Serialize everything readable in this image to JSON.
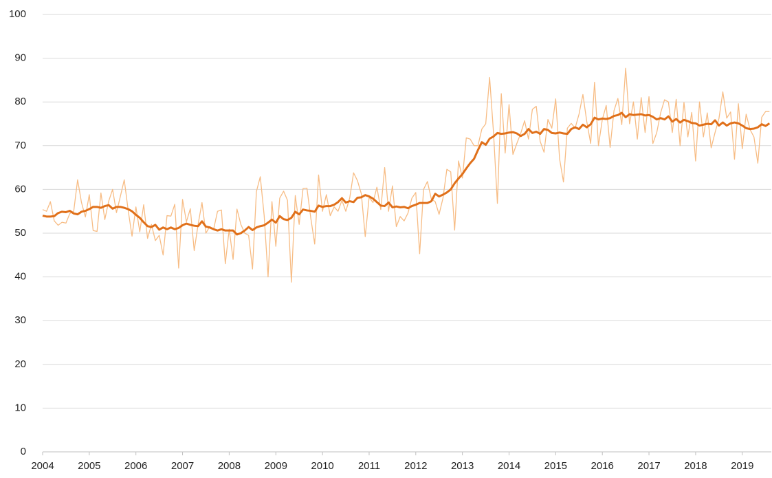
{
  "chart_data": {
    "type": "line",
    "categories": [
      "2004",
      null,
      null,
      null,
      null,
      null,
      null,
      null,
      null,
      null,
      null,
      null,
      "2005",
      null,
      null,
      null,
      null,
      null,
      null,
      null,
      null,
      null,
      null,
      null,
      "2006",
      null,
      null,
      null,
      null,
      null,
      null,
      null,
      null,
      null,
      null,
      null,
      "2007",
      null,
      null,
      null,
      null,
      null,
      null,
      null,
      null,
      null,
      null,
      null,
      "2008",
      null,
      null,
      null,
      null,
      null,
      null,
      null,
      null,
      null,
      null,
      null,
      "2009",
      null,
      null,
      null,
      null,
      null,
      null,
      null,
      null,
      null,
      null,
      null,
      "2010",
      null,
      null,
      null,
      null,
      null,
      null,
      null,
      null,
      null,
      null,
      null,
      "2011",
      null,
      null,
      null,
      null,
      null,
      null,
      null,
      null,
      null,
      null,
      null,
      "2012",
      null,
      null,
      null,
      null,
      null,
      null,
      null,
      null,
      null,
      null,
      null,
      "2013",
      null,
      null,
      null,
      null,
      null,
      null,
      null,
      null,
      null,
      null,
      null,
      "2014",
      null,
      null,
      null,
      null,
      null,
      null,
      null,
      null,
      null,
      null,
      null,
      "2015",
      null,
      null,
      null,
      null,
      null,
      null,
      null,
      null,
      null,
      null,
      null,
      "2016",
      null,
      null,
      null,
      null,
      null,
      null,
      null,
      null,
      null,
      null,
      null,
      "2017",
      null,
      null,
      null,
      null,
      null,
      null,
      null,
      null,
      null,
      null,
      null,
      "2018",
      null,
      null,
      null,
      null,
      null,
      null,
      null,
      null,
      null,
      null,
      null,
      "2019",
      null,
      null,
      null,
      null,
      null,
      null,
      null
    ],
    "series": [
      {
        "color": "#f7bc84",
        "values": [
          55.4,
          55,
          57.2,
          52.8,
          51.8,
          52.5,
          52.3,
          54.5,
          55,
          62.2,
          57,
          53.7,
          58.8,
          50.6,
          50.4,
          59.2,
          53.1,
          57.3,
          60,
          54.7,
          58.4,
          62.2,
          55.3,
          49.3,
          56,
          50.3,
          56.5,
          48.8,
          52,
          48.3,
          49.5,
          45,
          54,
          53.9,
          56.6,
          42,
          57.7,
          52.6,
          55.6,
          46,
          52,
          57,
          50,
          51.5,
          50.9,
          55,
          55.3,
          43,
          50.9,
          44,
          55.5,
          52,
          50,
          49.5,
          41.8,
          59.5,
          62.9,
          54,
          40,
          57.2,
          47,
          58,
          59.6,
          57.5,
          38.8,
          58.6,
          52,
          60.2,
          60.3,
          53.4,
          47.5,
          63.3,
          55,
          58.8,
          54,
          56,
          55,
          57.5,
          55,
          58,
          63.8,
          62,
          59,
          49.2,
          58.2,
          57,
          60.5,
          55.4,
          65,
          55,
          60.8,
          51.5,
          53.8,
          52.8,
          54.6,
          58,
          59.3,
          45.3,
          60,
          61.8,
          57.8,
          57.2,
          54.3,
          58,
          64.6,
          64,
          50.7,
          66.5,
          62.6,
          71.8,
          71.5,
          70,
          70,
          73.8,
          75,
          85.6,
          73,
          56.8,
          81.9,
          68.3,
          79.4,
          68,
          70.5,
          72.8,
          75.7,
          71.5,
          78.3,
          79,
          71,
          68.5,
          76,
          74,
          80.7,
          67,
          61.7,
          74,
          75.1,
          74,
          77.2,
          81.7,
          75.5,
          70.5,
          84.5,
          70,
          76,
          79.2,
          69.6,
          78,
          80.8,
          74.8,
          87.7,
          75,
          80,
          71.5,
          81,
          73,
          81.2,
          70.5,
          73,
          77.5,
          80.5,
          80,
          73,
          80.6,
          70,
          79.9,
          72,
          77.6,
          66.5,
          80,
          72,
          77.5,
          69.5,
          73,
          76.2,
          82.3,
          76.3,
          77.7,
          66.9,
          79.6,
          69.3,
          77.2,
          73.7,
          72,
          66,
          76.5,
          77.8,
          77.8
        ]
      },
      {
        "color": "#e0701a",
        "values": [
          54,
          53.8,
          53.8,
          53.9,
          54.6,
          54.9,
          54.8,
          55.1,
          54.5,
          54.3,
          54.9,
          55.1,
          55.5,
          56,
          56,
          55.8,
          56.2,
          56.4,
          55.6,
          56,
          56,
          55.8,
          55.5,
          55,
          54.2,
          53.5,
          52.5,
          51.6,
          51.4,
          51.9,
          50.8,
          51.3,
          50.9,
          51.3,
          50.9,
          51.2,
          51.8,
          52.2,
          51.9,
          51.7,
          51.6,
          52.7,
          51.5,
          51.3,
          50.9,
          50.6,
          50.9,
          50.6,
          50.6,
          50.6,
          49.7,
          50,
          50.6,
          51.4,
          50.7,
          51.3,
          51.6,
          51.8,
          52.4,
          53.1,
          52.4,
          53.9,
          53.2,
          53,
          53.5,
          54.9,
          54.3,
          55.4,
          55.2,
          55.1,
          54.9,
          56.3,
          56,
          56.2,
          56.2,
          56.5,
          57.1,
          58,
          57,
          57.3,
          57.1,
          58.1,
          58.2,
          58.7,
          58.4,
          57.9,
          57.1,
          56.3,
          56.2,
          57,
          55.9,
          56.1,
          55.9,
          56,
          55.7,
          56.2,
          56.5,
          56.9,
          56.9,
          56.9,
          57.3,
          59,
          58.4,
          58.8,
          59.3,
          60,
          61.4,
          62.5,
          63.5,
          64.8,
          66,
          67,
          69,
          70.8,
          70.2,
          71.6,
          72.1,
          72.9,
          72.7,
          72.8,
          73,
          73.1,
          72.8,
          72.2,
          72.7,
          73.8,
          72.9,
          73.2,
          72.7,
          73.8,
          73.6,
          72.9,
          72.8,
          73,
          72.8,
          72.7,
          73.8,
          74.2,
          73.8,
          74.8,
          74.2,
          74.9,
          76.4,
          76,
          76.2,
          76.1,
          76.3,
          76.8,
          77,
          77.5,
          76.5,
          77.2,
          77,
          77.1,
          77.2,
          76.9,
          77,
          76.6,
          76,
          76.3,
          76,
          76.7,
          75.5,
          76.1,
          75.3,
          75.9,
          75.6,
          75.2,
          75.1,
          74.6,
          74.8,
          75,
          74.9,
          75.8,
          74.6,
          75.3,
          74.6,
          75.1,
          75.3,
          75.1,
          74.6,
          74,
          73.8,
          73.9,
          74.2,
          74.9,
          74.5,
          75.1
        ]
      }
    ],
    "ylim": [
      0,
      100
    ],
    "yticks": [
      0,
      10,
      20,
      30,
      40,
      50,
      60,
      70,
      80,
      90,
      100
    ],
    "grid": true
  }
}
